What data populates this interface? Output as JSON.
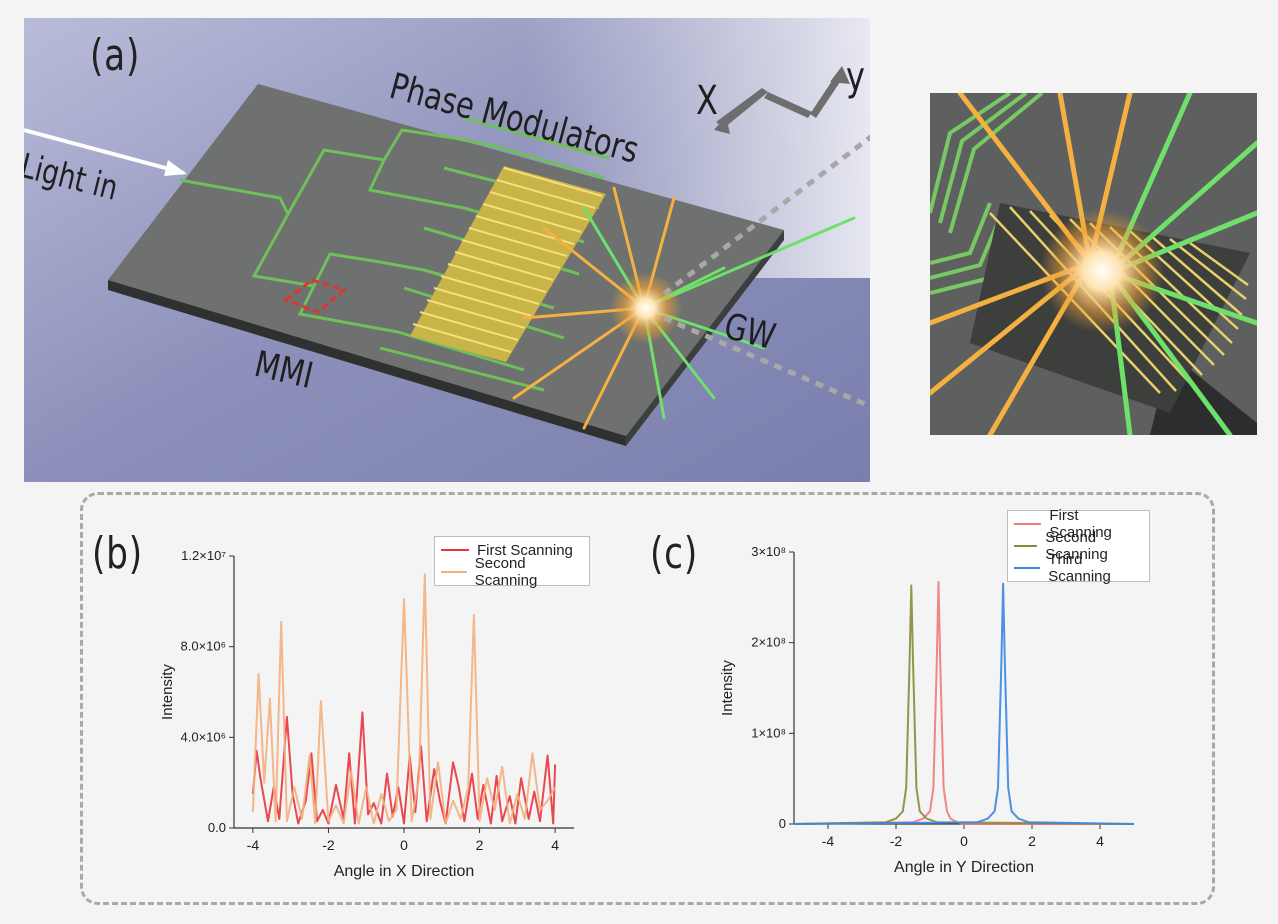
{
  "panel_a": {
    "label": "(a)",
    "light_in": "Light in",
    "phase_modulators": "Phase Modulators",
    "mmi": "MMI",
    "gw": "GW",
    "axis_x": "X",
    "axis_y": "y"
  },
  "colors": {
    "chip_top": "#6e716f",
    "waveguide": "#6fbf5a",
    "modulator": "#e8cf5a",
    "beam_orange": "#f4b040",
    "beam_green": "#6fe06a",
    "mmi_box": "#e0342c",
    "scan_first_b": "#e8353e",
    "scan_second_b": "#f2b07e",
    "scan_first_c": "#f07a7d",
    "scan_second_c": "#8b8a3c",
    "scan_third_c": "#3b86e0"
  },
  "chart_data": [
    {
      "panel": "(b)",
      "type": "line",
      "xlabel": "Angle in X Direction",
      "ylabel": "Intensity",
      "xlim": [
        -4.5,
        4.5
      ],
      "ylim": [
        0,
        12000000
      ],
      "xticks": [
        "-4",
        "-2",
        "0",
        "2",
        "4"
      ],
      "yticks": [
        "0.0",
        "4.0×10⁶",
        "8.0×10⁶",
        "1.2×10⁷"
      ],
      "legend_position": "top-right",
      "series": [
        {
          "name": "First Scanning",
          "x": [
            -4.0,
            -3.9,
            -3.8,
            -3.6,
            -3.45,
            -3.3,
            -3.1,
            -2.95,
            -2.8,
            -2.6,
            -2.45,
            -2.3,
            -2.15,
            -2.0,
            -1.8,
            -1.6,
            -1.45,
            -1.3,
            -1.1,
            -0.95,
            -0.8,
            -0.6,
            -0.45,
            -0.3,
            -0.15,
            0.0,
            0.15,
            0.3,
            0.45,
            0.6,
            0.8,
            0.95,
            1.1,
            1.3,
            1.45,
            1.6,
            1.8,
            1.95,
            2.1,
            2.3,
            2.45,
            2.6,
            2.8,
            2.95,
            3.1,
            3.3,
            3.45,
            3.6,
            3.8,
            3.95,
            4.0
          ],
          "y": [
            1500000,
            3400000,
            2200000,
            300000,
            1800000,
            400000,
            4900000,
            1500000,
            200000,
            1200000,
            3300000,
            300000,
            800000,
            200000,
            1900000,
            400000,
            3300000,
            200000,
            5100000,
            600000,
            1100000,
            200000,
            2400000,
            500000,
            1800000,
            200000,
            3200000,
            700000,
            3600000,
            300000,
            2600000,
            1200000,
            200000,
            2900000,
            1800000,
            300000,
            2400000,
            400000,
            1900000,
            200000,
            2300000,
            300000,
            1400000,
            200000,
            2200000,
            400000,
            1600000,
            300000,
            3200000,
            200000,
            2800000
          ]
        },
        {
          "name": "Second Scanning",
          "x": [
            -4.0,
            -3.85,
            -3.7,
            -3.55,
            -3.4,
            -3.25,
            -3.1,
            -2.9,
            -2.7,
            -2.5,
            -2.35,
            -2.2,
            -2.0,
            -1.8,
            -1.6,
            -1.4,
            -1.2,
            -1.0,
            -0.8,
            -0.6,
            -0.4,
            -0.2,
            0.0,
            0.2,
            0.4,
            0.55,
            0.7,
            0.9,
            1.1,
            1.3,
            1.5,
            1.7,
            1.85,
            2.0,
            2.2,
            2.4,
            2.6,
            2.8,
            3.0,
            3.2,
            3.4,
            3.6,
            3.8,
            4.0
          ],
          "y": [
            700000,
            6800000,
            2000000,
            5700000,
            300000,
            9100000,
            300000,
            1800000,
            400000,
            3200000,
            200000,
            5600000,
            300000,
            1000000,
            200000,
            2500000,
            200000,
            1800000,
            200000,
            1500000,
            300000,
            800000,
            10100000,
            300000,
            2200000,
            11200000,
            400000,
            2900000,
            200000,
            1200000,
            400000,
            1800000,
            9400000,
            300000,
            2200000,
            800000,
            2700000,
            200000,
            1500000,
            400000,
            3300000,
            800000,
            1200000,
            1800000
          ]
        }
      ]
    },
    {
      "panel": "(c)",
      "type": "line",
      "xlabel": "Angle in Y Direction",
      "ylabel": "Intensity",
      "xlim": [
        -5,
        5
      ],
      "ylim": [
        0,
        300000000
      ],
      "xticks": [
        "-4",
        "-2",
        "0",
        "2",
        "4"
      ],
      "yticks": [
        "0",
        "1×10⁸",
        "2×10⁸",
        "3×10⁸"
      ],
      "legend_position": "top-right",
      "series": [
        {
          "name": "First Scanning",
          "x": [
            -5.0,
            -1.5,
            -1.2,
            -1.0,
            -0.9,
            -0.8,
            -0.75,
            -0.7,
            -0.6,
            -0.5,
            -0.4,
            -0.2,
            0.0,
            5.0
          ],
          "y": [
            0,
            2000000,
            6000000,
            14000000,
            40000000,
            180000000,
            267000000,
            180000000,
            40000000,
            14000000,
            6000000,
            2000000,
            0,
            0
          ]
        },
        {
          "name": "Second Scanning",
          "x": [
            -5.0,
            -2.3,
            -2.0,
            -1.8,
            -1.7,
            -1.6,
            -1.55,
            -1.5,
            -1.4,
            -1.3,
            -1.1,
            -0.8,
            5.0
          ],
          "y": [
            0,
            2000000,
            6000000,
            14000000,
            40000000,
            180000000,
            263000000,
            180000000,
            40000000,
            14000000,
            6000000,
            2000000,
            0
          ]
        },
        {
          "name": "Third Scanning",
          "x": [
            -5.0,
            0.4,
            0.7,
            0.9,
            1.0,
            1.1,
            1.15,
            1.2,
            1.3,
            1.4,
            1.6,
            1.9,
            5.0
          ],
          "y": [
            0,
            2000000,
            6000000,
            14000000,
            40000000,
            180000000,
            265000000,
            180000000,
            40000000,
            14000000,
            6000000,
            2000000,
            0
          ]
        }
      ]
    }
  ]
}
